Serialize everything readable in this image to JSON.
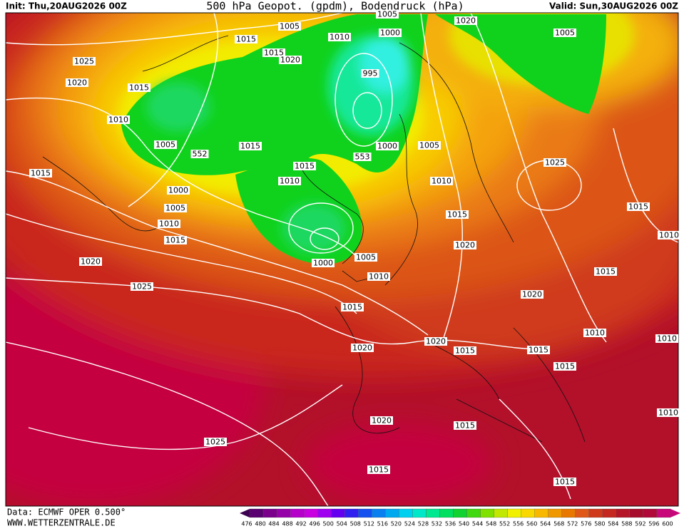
{
  "header": {
    "init": "Init: Thu,20AUG2026 00Z",
    "title": "500 hPa Geopot. (gpdm), Bodendruck (hPa)",
    "valid": "Valid: Sun,30AUG2026 00Z"
  },
  "footer": {
    "source": "Data: ECMWF OPER 0.500°",
    "site": "WWW.WETTERZENTRALE.DE"
  },
  "legend": {
    "values": [
      476,
      480,
      484,
      488,
      492,
      496,
      500,
      504,
      508,
      512,
      516,
      520,
      524,
      528,
      532,
      536,
      540,
      544,
      548,
      552,
      556,
      560,
      564,
      568,
      572,
      576,
      580,
      584,
      588,
      592,
      596,
      600
    ]
  },
  "map": {
    "isobar_labels": [
      "1005",
      "1005",
      "1015",
      "1000",
      "1010",
      "1020",
      "1005",
      "1025",
      "1015",
      "1020",
      "1020",
      "1015",
      "995",
      "1010",
      "1005",
      "552",
      "1015",
      "1000",
      "1005",
      "553",
      "1015",
      "1025",
      "1015",
      "1010",
      "1010",
      "1000",
      "1005",
      "1015",
      "1015",
      "1010",
      "1010",
      "1015",
      "1020",
      "1005",
      "1020",
      "1000",
      "1015",
      "1010",
      "1025",
      "1020",
      "1015",
      "1010",
      "1010",
      "1020",
      "1020",
      "1015",
      "1015",
      "1015",
      "1010",
      "1020",
      "1015",
      "1025",
      "1015",
      "1015"
    ]
  }
}
